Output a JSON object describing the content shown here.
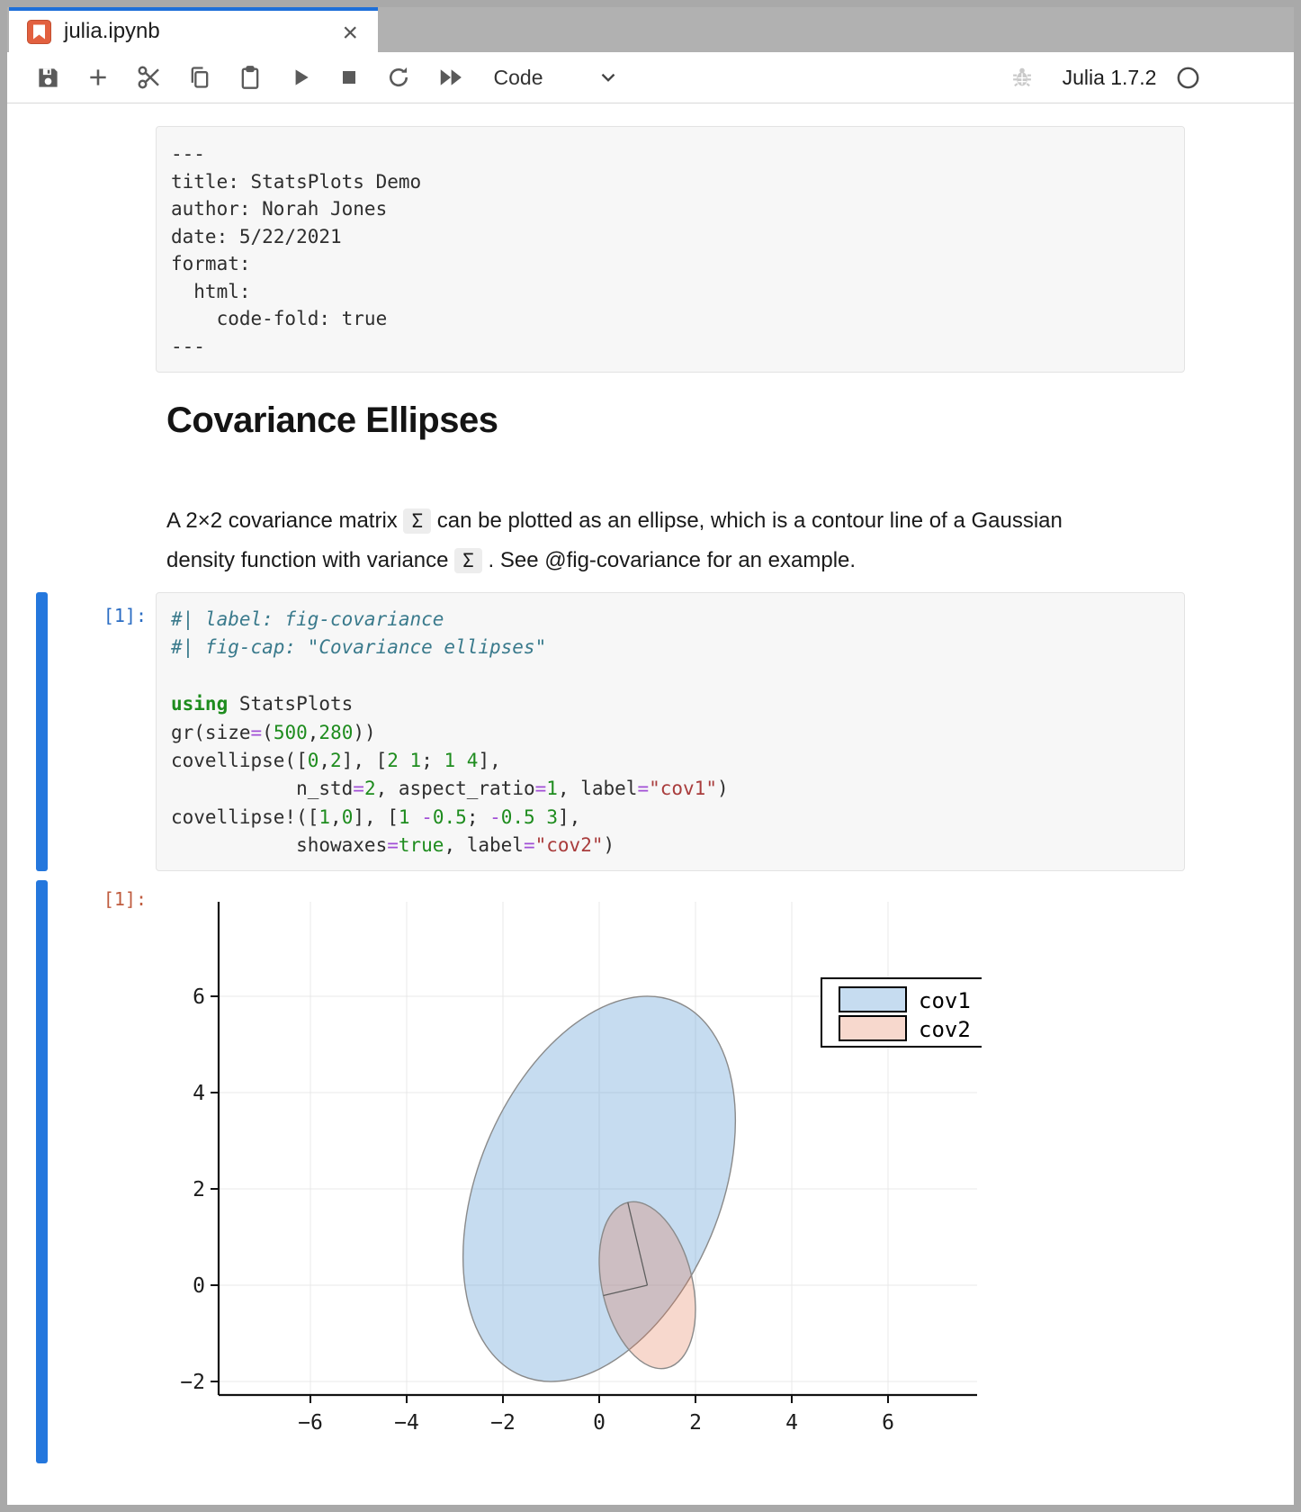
{
  "window": {
    "tab": {
      "title": "julia.ipynb",
      "close_glyph": "×"
    },
    "toolbar": {
      "mode_label": "Code",
      "kernel_label": "Julia 1.7.2"
    }
  },
  "yaml_cell": {
    "lines": [
      "---",
      "title: StatsPlots Demo",
      "author: Norah Jones",
      "date: 5/22/2021",
      "format:",
      "  html:",
      "    code-fold: true",
      "---"
    ]
  },
  "article": {
    "heading": "Covariance Ellipses",
    "paragraph": {
      "before": "A 2×2 covariance matrix ",
      "sigma1": "Σ",
      "middle": " can be plotted as an ellipse, which is a contour line of a Gaussian density function with variance ",
      "sigma2": "Σ",
      "after": " . See @fig-covariance for an example."
    }
  },
  "code_cell": {
    "prompt": "[1]:",
    "lines": [
      [
        {
          "c": "com",
          "t": "#| label: fig-covariance"
        }
      ],
      [
        {
          "c": "com",
          "t": "#| fig-cap: \"Covariance ellipses\""
        }
      ],
      [],
      [
        {
          "c": "kw",
          "t": "using"
        },
        {
          "c": "pl",
          "t": " StatsPlots"
        }
      ],
      [
        {
          "c": "pl",
          "t": "gr(size"
        },
        {
          "c": "op",
          "t": "="
        },
        {
          "c": "pl",
          "t": "("
        },
        {
          "c": "num",
          "t": "500"
        },
        {
          "c": "pl",
          "t": ","
        },
        {
          "c": "num",
          "t": "280"
        },
        {
          "c": "pl",
          "t": "))"
        }
      ],
      [
        {
          "c": "pl",
          "t": "covellipse(["
        },
        {
          "c": "num",
          "t": "0"
        },
        {
          "c": "pl",
          "t": ","
        },
        {
          "c": "num",
          "t": "2"
        },
        {
          "c": "pl",
          "t": "], ["
        },
        {
          "c": "num",
          "t": "2 1"
        },
        {
          "c": "pl",
          "t": "; "
        },
        {
          "c": "num",
          "t": "1 4"
        },
        {
          "c": "pl",
          "t": "],"
        }
      ],
      [
        {
          "c": "pl",
          "t": "           n_std"
        },
        {
          "c": "op",
          "t": "="
        },
        {
          "c": "num",
          "t": "2"
        },
        {
          "c": "pl",
          "t": ", aspect_ratio"
        },
        {
          "c": "op",
          "t": "="
        },
        {
          "c": "num",
          "t": "1"
        },
        {
          "c": "pl",
          "t": ", label"
        },
        {
          "c": "op",
          "t": "="
        },
        {
          "c": "str",
          "t": "\"cov1\""
        },
        {
          "c": "pl",
          "t": ")"
        }
      ],
      [
        {
          "c": "pl",
          "t": "covellipse!(["
        },
        {
          "c": "num",
          "t": "1"
        },
        {
          "c": "pl",
          "t": ","
        },
        {
          "c": "num",
          "t": "0"
        },
        {
          "c": "pl",
          "t": "], ["
        },
        {
          "c": "num",
          "t": "1 "
        },
        {
          "c": "op",
          "t": "-"
        },
        {
          "c": "num",
          "t": "0.5"
        },
        {
          "c": "pl",
          "t": "; "
        },
        {
          "c": "op",
          "t": "-"
        },
        {
          "c": "num",
          "t": "0.5 3"
        },
        {
          "c": "pl",
          "t": "],"
        }
      ],
      [
        {
          "c": "pl",
          "t": "           showaxes"
        },
        {
          "c": "op",
          "t": "="
        },
        {
          "c": "num",
          "t": "true"
        },
        {
          "c": "pl",
          "t": ", label"
        },
        {
          "c": "op",
          "t": "="
        },
        {
          "c": "str",
          "t": "\"cov2\""
        },
        {
          "c": "pl",
          "t": ")"
        }
      ]
    ]
  },
  "output_cell": {
    "prompt": "[1]:"
  },
  "chart_data": {
    "type": "scatter",
    "subtype": "covariance-ellipses",
    "title": "",
    "xlabel": "",
    "ylabel": "",
    "xlim": [
      -7.9,
      7.85
    ],
    "ylim": [
      -2.28,
      7.96
    ],
    "grid": true,
    "x_ticks": [
      -6,
      -4,
      -2,
      0,
      2,
      4,
      6
    ],
    "x_tick_labels": [
      "−6",
      "−4",
      "−2",
      "0",
      "2",
      "4",
      "6"
    ],
    "y_ticks": [
      6,
      4,
      2,
      0,
      -2
    ],
    "y_tick_labels": [
      "6",
      "4",
      "2",
      "0",
      "−2"
    ],
    "legend_position": "top-right",
    "legend": [
      "cov1",
      "cov2"
    ],
    "series": [
      {
        "name": "cov1",
        "mean": [
          0,
          2
        ],
        "cov": [
          [
            2,
            1
          ],
          [
            1,
            4
          ]
        ],
        "n_std": 2,
        "ellipse": {
          "cx": 0,
          "cy": 2,
          "a": 4.202,
          "b": 2.5186,
          "angle_deg": 67.5
        },
        "fill": "#5b9bd5",
        "fill_opacity": 0.35,
        "stroke": "#8a8a8a"
      },
      {
        "name": "cov2",
        "mean": [
          1,
          0
        ],
        "cov": [
          [
            1,
            -0.5
          ],
          [
            -0.5,
            3
          ]
        ],
        "n_std": 1,
        "showaxes": true,
        "ellipse": {
          "cx": 1,
          "cy": 0,
          "a": 1.7658,
          "b": 0.9391,
          "angle_deg": 103.28
        },
        "axes_vectors": [
          [
            -0.40572,
            1.71857
          ],
          [
            -0.91402,
            -0.21577
          ]
        ],
        "fill": "#e36f47",
        "fill_opacity": 0.27,
        "stroke": "#8a8a8a"
      }
    ]
  },
  "colors": {
    "tab_accent": "#1e6fd9",
    "cell_collapser": "#2477dd",
    "input_prompt": "#2a6cc3",
    "output_prompt": "#bf5b3e",
    "axis": "#111111",
    "gridline": "#e8e8e8",
    "legend_border": "#000000"
  }
}
